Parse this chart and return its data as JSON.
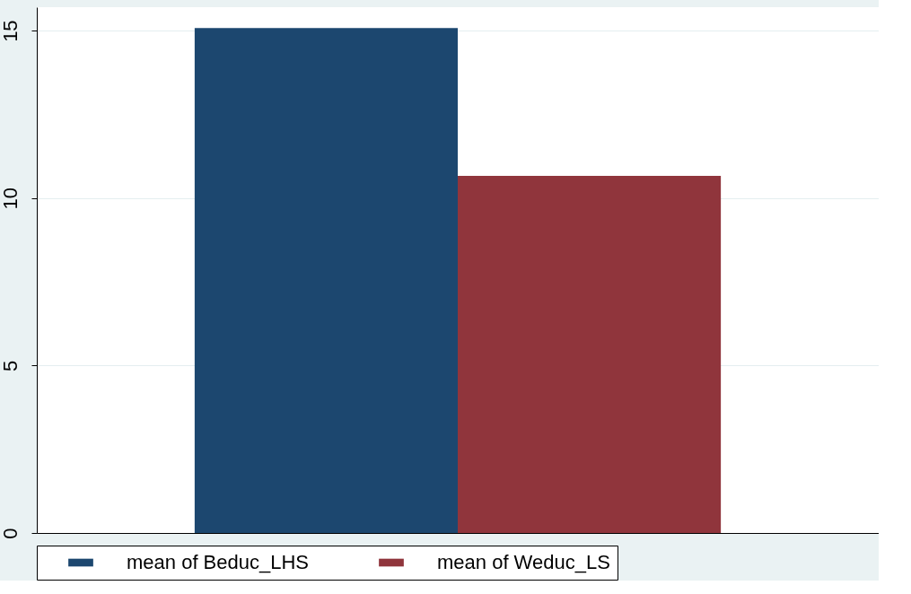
{
  "chart_data": {
    "type": "bar",
    "categories": [
      null
    ],
    "series": [
      {
        "name": "mean of Beduc_LHS",
        "color": "#1c476f",
        "values": [
          15.08
        ]
      },
      {
        "name": "mean of Weduc_LS",
        "color": "#90353c",
        "values": [
          10.66
        ]
      }
    ],
    "ylim": [
      0,
      15.7
    ],
    "yticks": [
      0,
      5,
      10,
      15
    ],
    "grid": "y",
    "legend": "bottom",
    "tick_labels": "y"
  }
}
